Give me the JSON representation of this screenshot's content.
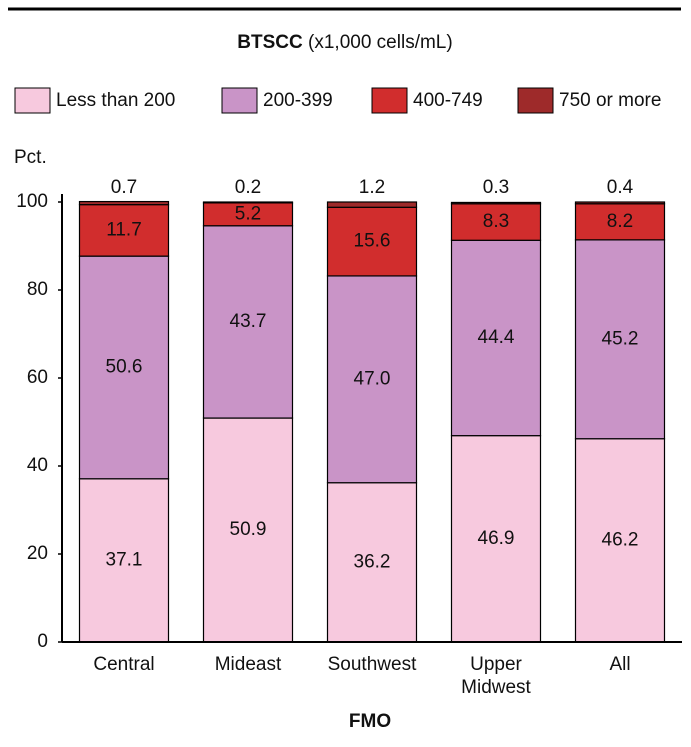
{
  "chart_data": {
    "type": "bar",
    "stacked": true,
    "title": "BTSCC",
    "subtitle": "(x1,000 cells/mL)",
    "y_label": "Pct.",
    "x_label": "FMO",
    "categories": [
      "Central",
      "Mideast",
      "Southwest",
      "Upper Midwest",
      "All"
    ],
    "series": [
      {
        "name": "Less than 200",
        "color": "#f7c9de",
        "values": [
          37.1,
          50.9,
          36.2,
          46.9,
          46.2
        ],
        "value_labels": [
          "37.1",
          "50.9",
          "36.2",
          "46.9",
          "46.2"
        ]
      },
      {
        "name": "200-399",
        "color": "#c994c7",
        "values": [
          50.6,
          43.7,
          47.0,
          44.4,
          45.2
        ],
        "value_labels": [
          "50.6",
          "43.7",
          "47.0",
          "44.4",
          "45.2"
        ]
      },
      {
        "name": "400-749",
        "color": "#d12d2d",
        "values": [
          11.7,
          5.2,
          15.6,
          8.3,
          8.2
        ],
        "value_labels": [
          "11.7",
          "5.2",
          "15.6",
          "8.3",
          "8.2"
        ]
      },
      {
        "name": "750 or more",
        "color": "#9e2a2a",
        "values": [
          0.7,
          0.2,
          1.2,
          0.3,
          0.4
        ],
        "value_labels": [
          "0.7",
          "0.2",
          "1.2",
          "0.3",
          "0.4"
        ]
      }
    ],
    "ylim": [
      0,
      100
    ],
    "yticks": [
      0,
      20,
      40,
      60,
      80,
      100
    ]
  }
}
